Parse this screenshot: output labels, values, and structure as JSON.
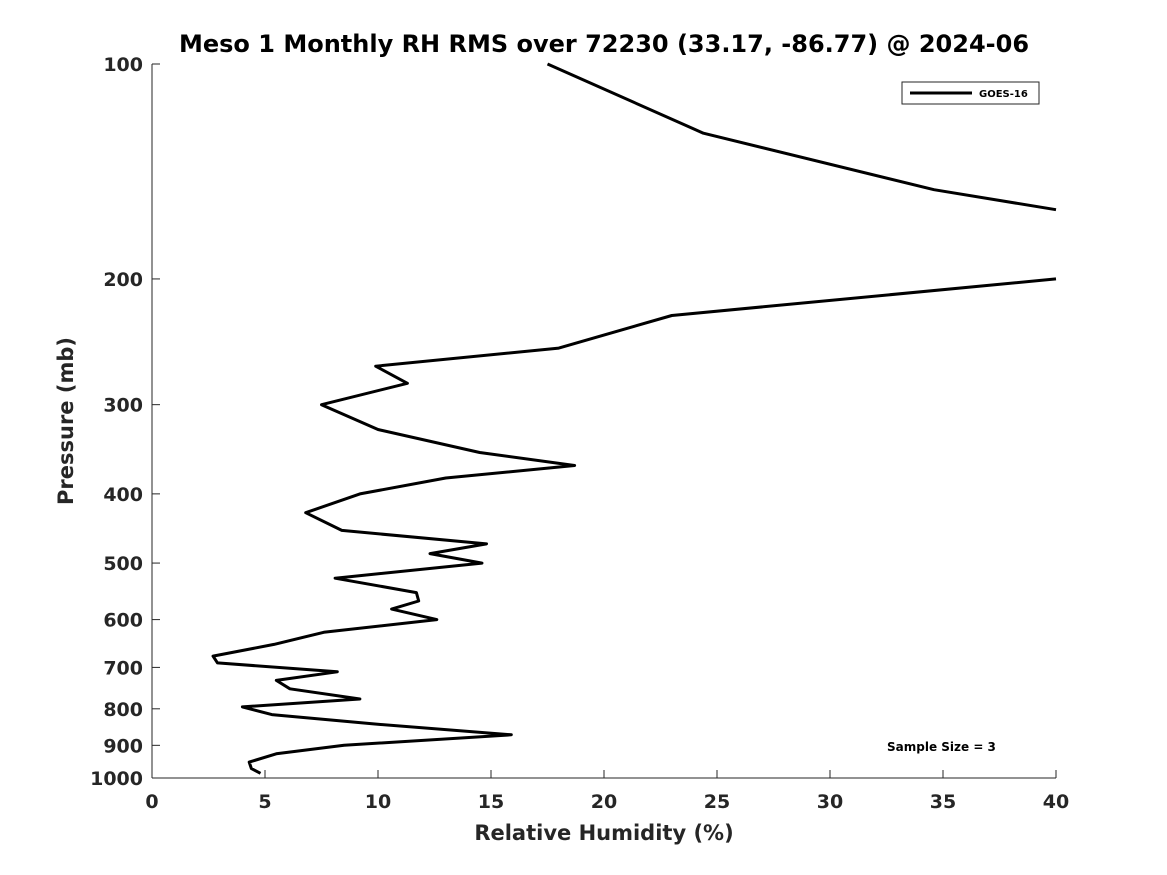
{
  "chart_data": {
    "type": "line",
    "title": "Meso 1 Monthly RH RMS over 72230 (33.17, -86.77) @ 2024-06",
    "xlabel": "Relative Humidity (%)",
    "ylabel": "Pressure (mb)",
    "xlim": [
      0,
      40
    ],
    "ylim": [
      100,
      1000
    ],
    "y_scale": "log",
    "y_reversed": true,
    "x_ticks": [
      0,
      5,
      10,
      15,
      20,
      25,
      30,
      35,
      40
    ],
    "y_ticks": [
      100,
      200,
      300,
      400,
      500,
      600,
      700,
      800,
      900,
      1000
    ],
    "grid": false,
    "legend_position": "top-right",
    "annotation": "Sample Size = 3",
    "series": [
      {
        "name": "GOES-16",
        "color": "#000000",
        "points": [
          [
            17.5,
            100
          ],
          [
            24.4,
            125
          ],
          [
            34.6,
            150
          ],
          [
            40.0,
            160
          ],
          [
            40.0,
            200
          ],
          [
            23.0,
            225
          ],
          [
            18.0,
            250
          ],
          [
            9.9,
            265
          ],
          [
            11.3,
            280
          ],
          [
            7.5,
            300
          ],
          [
            10.0,
            325
          ],
          [
            14.5,
            350
          ],
          [
            18.7,
            365
          ],
          [
            13.0,
            380
          ],
          [
            9.2,
            400
          ],
          [
            6.8,
            425
          ],
          [
            8.4,
            450
          ],
          [
            14.8,
            470
          ],
          [
            12.3,
            485
          ],
          [
            14.6,
            500
          ],
          [
            8.1,
            525
          ],
          [
            11.7,
            550
          ],
          [
            11.8,
            565
          ],
          [
            10.6,
            580
          ],
          [
            12.6,
            600
          ],
          [
            7.6,
            625
          ],
          [
            5.4,
            650
          ],
          [
            2.7,
            675
          ],
          [
            2.9,
            690
          ],
          [
            8.2,
            710
          ],
          [
            5.5,
            730
          ],
          [
            6.1,
            750
          ],
          [
            9.2,
            775
          ],
          [
            4.0,
            795
          ],
          [
            5.3,
            815
          ],
          [
            9.8,
            840
          ],
          [
            15.9,
            870
          ],
          [
            8.5,
            900
          ],
          [
            5.5,
            925
          ],
          [
            4.3,
            950
          ],
          [
            4.4,
            970
          ],
          [
            4.8,
            985
          ]
        ]
      }
    ]
  }
}
